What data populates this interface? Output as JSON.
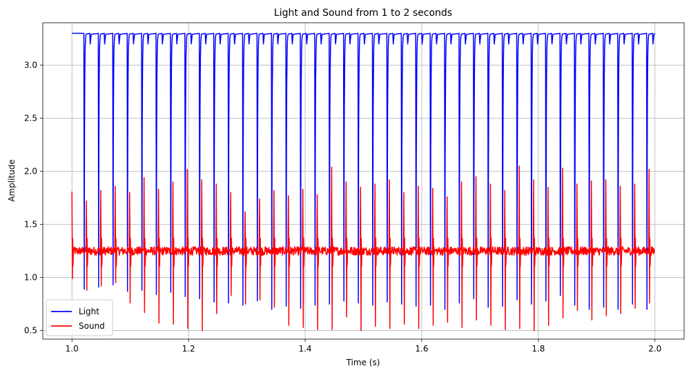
{
  "chart_data": {
    "type": "line",
    "title": "Light and Sound from 1 to 2 seconds",
    "xlabel": "Time (s)",
    "ylabel": "Amplitude",
    "xlim": [
      0.95,
      2.05
    ],
    "ylim": [
      0.42,
      3.4
    ],
    "x_ticks": [
      1.0,
      1.2,
      1.4,
      1.6,
      1.8,
      2.0
    ],
    "x_tick_labels": [
      "1.0",
      "1.2",
      "1.4",
      "1.6",
      "1.8",
      "2.0"
    ],
    "y_ticks": [
      0.5,
      1.0,
      1.5,
      2.0,
      2.5,
      3.0
    ],
    "y_tick_labels": [
      "0.5",
      "1.0",
      "1.5",
      "2.0",
      "2.5",
      "3.0"
    ],
    "grid": true,
    "legend_position": "lower-left",
    "series": [
      {
        "name": "Light",
        "color": "#0000ff",
        "baseline": 3.3,
        "period_s": 0.02475,
        "first_dip_time": 1.021,
        "dip_minima": [
          0.89,
          0.91,
          0.93,
          0.87,
          0.88,
          0.84,
          0.86,
          0.82,
          0.8,
          0.77,
          0.76,
          0.74,
          0.78,
          0.7,
          0.73,
          0.71,
          0.74,
          0.75,
          0.78,
          0.76,
          0.74,
          0.77,
          0.75,
          0.73,
          0.74,
          0.7,
          0.76,
          0.8,
          0.72,
          0.73,
          0.79,
          0.75,
          0.78,
          0.83,
          0.74,
          0.7,
          0.72,
          0.7,
          0.75,
          0.7,
          0.81
        ]
      },
      {
        "name": "Sound",
        "color": "#ff0000",
        "baseline": 1.25,
        "period_s": 0.02475,
        "first_spike_time": 1.0,
        "spike_maxima": [
          1.81,
          1.72,
          1.82,
          1.86,
          1.8,
          1.94,
          1.83,
          1.9,
          2.02,
          1.92,
          1.88,
          1.8,
          1.62,
          1.74,
          1.82,
          1.77,
          1.83,
          1.78,
          2.04,
          1.9,
          1.85,
          1.88,
          1.92,
          1.8,
          1.86,
          1.84,
          1.76,
          1.9,
          1.95,
          1.88,
          1.82,
          2.05,
          1.92,
          1.85,
          2.03,
          1.88,
          1.91,
          1.92,
          1.86,
          1.88,
          2.02,
          2.05
        ],
        "spike_minima": [
          0.99,
          0.88,
          0.92,
          0.95,
          0.76,
          0.67,
          0.57,
          0.56,
          0.52,
          0.5,
          0.66,
          0.83,
          0.75,
          0.79,
          0.72,
          0.55,
          0.53,
          0.51,
          0.51,
          0.63,
          0.5,
          0.54,
          0.52,
          0.56,
          0.52,
          0.55,
          0.58,
          0.53,
          0.6,
          0.55,
          0.51,
          0.52,
          0.5,
          0.55,
          0.62,
          0.69,
          0.6,
          0.64,
          0.66,
          0.71,
          0.76,
          0.71
        ]
      }
    ]
  }
}
